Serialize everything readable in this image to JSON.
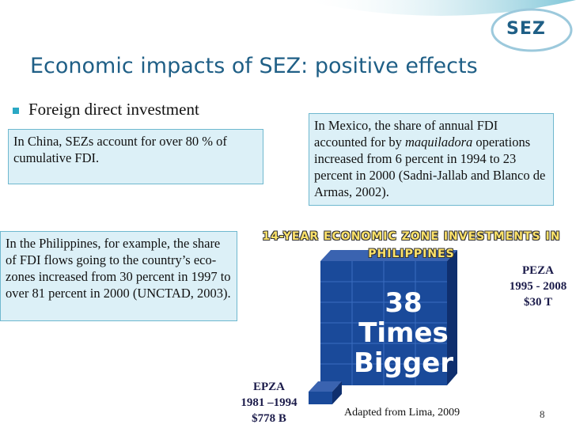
{
  "logo": "SEZ",
  "title": "Economic impacts of SEZ: positive effects",
  "bullet": "Foreign direct investment",
  "china_box": "In China, SEZs account for over 80 % of cumulative FDI.",
  "mexico_box": {
    "before": "In Mexico, the share of annual FDI accounted for by",
    "emphasis": "maquiladora",
    "after": "operations increased from 6 percent in 1994 to 23 percent in 2000 (Sadni-Jallab and Blanco de Armas, 2002)."
  },
  "philippines_box": "In the Philippines, for example, the share of FDI flows going to the country’s eco-zones increased from 30 percent in 1997 to over 81 percent in 2000 (UNCTAD, 2003).",
  "chart_heading": "14-Year Economic Zone Investments in Philippines",
  "highlight": [
    "38",
    "Times",
    "Bigger"
  ],
  "peza": [
    "PEZA",
    "1995 - 2008",
    "$30 T"
  ],
  "epza": [
    "EPZA",
    "1981 –1994",
    "$778 B"
  ],
  "source": "Adapted from Lima, 2009",
  "page_number": "8"
}
